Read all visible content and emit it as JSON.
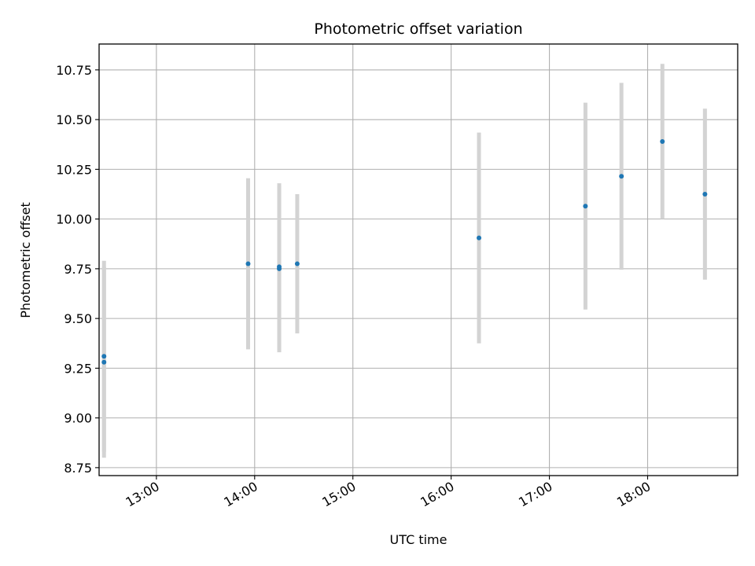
{
  "chart_data": {
    "type": "scatter",
    "title": "Photometric offset variation",
    "xlabel": "UTC time",
    "ylabel": "Photometric offset",
    "xlim": [
      "12:25",
      "18:55"
    ],
    "ylim": [
      8.71,
      10.88
    ],
    "x_ticks": [
      "13:00",
      "14:00",
      "15:00",
      "16:00",
      "17:00",
      "18:00"
    ],
    "y_ticks": [
      8.75,
      9.0,
      9.25,
      9.5,
      9.75,
      10.0,
      10.25,
      10.5,
      10.75
    ],
    "y_tick_labels": [
      "8.75",
      "9.00",
      "9.25",
      "9.50",
      "9.75",
      "10.00",
      "10.25",
      "10.50",
      "10.75"
    ],
    "grid": true,
    "marker_color": "#1f77b4",
    "errorbar_color": "#d3d3d3",
    "points": [
      {
        "x": "12:28",
        "y": 9.31,
        "err": 0.48
      },
      {
        "x": "12:28",
        "y": 9.28,
        "err": 0.48
      },
      {
        "x": "13:56",
        "y": 9.775,
        "err": 0.43
      },
      {
        "x": "14:15",
        "y": 9.76,
        "err": 0.42
      },
      {
        "x": "14:15",
        "y": 9.75,
        "err": 0.42
      },
      {
        "x": "14:26",
        "y": 9.775,
        "err": 0.35
      },
      {
        "x": "16:17",
        "y": 9.905,
        "err": 0.53
      },
      {
        "x": "17:22",
        "y": 10.065,
        "err": 0.52
      },
      {
        "x": "17:44",
        "y": 10.215,
        "err": 0.47
      },
      {
        "x": "18:09",
        "y": 10.39,
        "err": 0.39
      },
      {
        "x": "18:35",
        "y": 10.125,
        "err": 0.43
      }
    ]
  }
}
